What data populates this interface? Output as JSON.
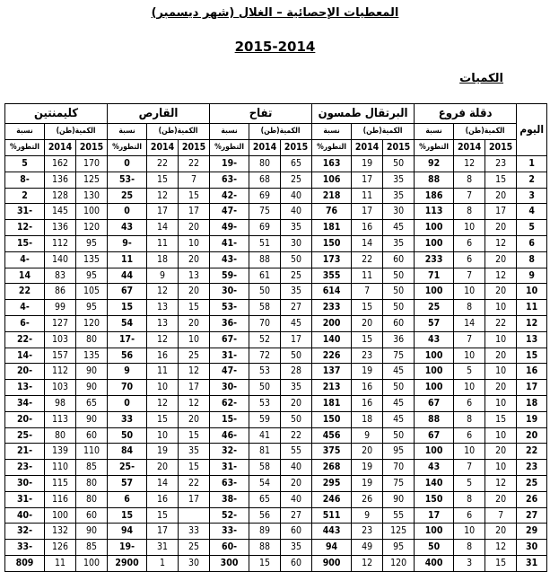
{
  "title": "المعطيات الإحصائية – الغلال (شهر ديسمبر)",
  "years": "2015-2014",
  "section": "الكميات",
  "table": {
    "day_header": "اليوم",
    "groups": [
      "دقلة فروع",
      "البرتقال طمسون",
      "تفاح",
      "القارص",
      "كليمنتين"
    ],
    "qty_label": "الكمية(طن)",
    "pct_label_top": "نسبة",
    "pct_label_bottom": "التطور%",
    "year_a": "2015",
    "year_b": "2014",
    "rows": [
      [
        "1",
        "23",
        "12",
        "92",
        "50",
        "19",
        "163",
        "65",
        "80",
        "19-",
        "22",
        "22",
        "0",
        "170",
        "162",
        "5"
      ],
      [
        "2",
        "15",
        "8",
        "88",
        "35",
        "17",
        "106",
        "25",
        "68",
        "63-",
        "7",
        "15",
        "53-",
        "125",
        "136",
        "8-"
      ],
      [
        "3",
        "20",
        "7",
        "186",
        "35",
        "11",
        "218",
        "40",
        "69",
        "42-",
        "15",
        "12",
        "25",
        "130",
        "128",
        "2"
      ],
      [
        "4",
        "17",
        "8",
        "113",
        "30",
        "17",
        "76",
        "40",
        "75",
        "47-",
        "17",
        "17",
        "0",
        "100",
        "145",
        "31-"
      ],
      [
        "5",
        "20",
        "10",
        "100",
        "45",
        "16",
        "181",
        "35",
        "69",
        "49-",
        "20",
        "14",
        "43",
        "120",
        "136",
        "12-"
      ],
      [
        "6",
        "12",
        "6",
        "100",
        "35",
        "14",
        "150",
        "30",
        "51",
        "41-",
        "10",
        "11",
        "9-",
        "95",
        "112",
        "15-"
      ],
      [
        "8",
        "20",
        "6",
        "233",
        "60",
        "22",
        "173",
        "50",
        "88",
        "43-",
        "20",
        "18",
        "11",
        "135",
        "140",
        "4-"
      ],
      [
        "9",
        "12",
        "7",
        "71",
        "50",
        "11",
        "355",
        "25",
        "61",
        "59-",
        "13",
        "9",
        "44",
        "95",
        "83",
        "14"
      ],
      [
        "10",
        "20",
        "10",
        "100",
        "50",
        "7",
        "614",
        "35",
        "50",
        "30-",
        "20",
        "12",
        "67",
        "105",
        "86",
        "22"
      ],
      [
        "11",
        "10",
        "8",
        "25",
        "50",
        "15",
        "233",
        "27",
        "58",
        "53-",
        "15",
        "13",
        "15",
        "95",
        "99",
        "4-"
      ],
      [
        "12",
        "22",
        "14",
        "57",
        "60",
        "20",
        "200",
        "45",
        "70",
        "36-",
        "20",
        "13",
        "54",
        "120",
        "127",
        "6-"
      ],
      [
        "13",
        "10",
        "7",
        "43",
        "36",
        "15",
        "140",
        "17",
        "52",
        "67-",
        "10",
        "12",
        "17-",
        "80",
        "103",
        "22-"
      ],
      [
        "15",
        "20",
        "10",
        "100",
        "75",
        "23",
        "226",
        "50",
        "72",
        "31-",
        "25",
        "16",
        "56",
        "135",
        "157",
        "14-"
      ],
      [
        "16",
        "10",
        "5",
        "100",
        "45",
        "19",
        "137",
        "28",
        "53",
        "47-",
        "12",
        "11",
        "9",
        "90",
        "112",
        "20-"
      ],
      [
        "17",
        "20",
        "10",
        "100",
        "50",
        "16",
        "213",
        "35",
        "50",
        "30-",
        "17",
        "10",
        "70",
        "90",
        "103",
        "13-"
      ],
      [
        "18",
        "10",
        "6",
        "67",
        "45",
        "16",
        "181",
        "20",
        "53",
        "62-",
        "12",
        "12",
        "0",
        "65",
        "98",
        "34-"
      ],
      [
        "19",
        "15",
        "8",
        "88",
        "45",
        "18",
        "150",
        "50",
        "59",
        "15-",
        "20",
        "15",
        "33",
        "90",
        "113",
        "20-"
      ],
      [
        "20",
        "10",
        "6",
        "67",
        "50",
        "9",
        "456",
        "22",
        "41",
        "46-",
        "15",
        "10",
        "50",
        "60",
        "80",
        "25-"
      ],
      [
        "22",
        "20",
        "10",
        "100",
        "95",
        "20",
        "375",
        "55",
        "81",
        "32-",
        "35",
        "19",
        "84",
        "110",
        "139",
        "21-"
      ],
      [
        "23",
        "10",
        "7",
        "43",
        "70",
        "19",
        "268",
        "40",
        "58",
        "31-",
        "15",
        "20",
        "25-",
        "85",
        "110",
        "23-"
      ],
      [
        "25",
        "12",
        "5",
        "140",
        "75",
        "19",
        "295",
        "20",
        "54",
        "63-",
        "22",
        "14",
        "57",
        "80",
        "115",
        "30-"
      ],
      [
        "26",
        "20",
        "8",
        "150",
        "90",
        "26",
        "246",
        "40",
        "65",
        "38-",
        "17",
        "16",
        "6",
        "80",
        "116",
        "31-"
      ],
      [
        "27",
        "7",
        "6",
        "17",
        "55",
        "9",
        "511",
        "27",
        "56",
        "52-",
        "",
        "15",
        "15",
        "60",
        "100",
        "40-"
      ],
      [
        "29",
        "20",
        "10",
        "100",
        "125",
        "23",
        "443",
        "60",
        "89",
        "33-",
        "33",
        "17",
        "94",
        "90",
        "132",
        "32-"
      ],
      [
        "30",
        "12",
        "8",
        "50",
        "95",
        "49",
        "94",
        "35",
        "88",
        "60-",
        "25",
        "31",
        "19-",
        "85",
        "126",
        "33-"
      ],
      [
        "31",
        "15",
        "3",
        "400",
        "120",
        "12",
        "900",
        "60",
        "15",
        "300",
        "30",
        "1",
        "2900",
        "100",
        "11",
        "809"
      ]
    ]
  }
}
